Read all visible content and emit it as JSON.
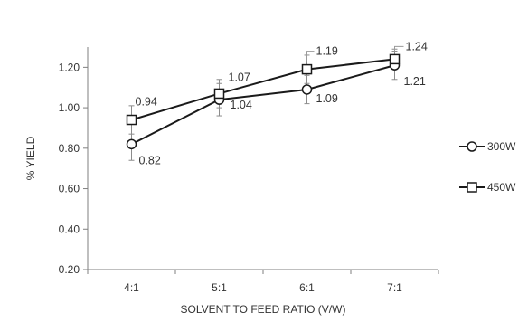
{
  "chart_data": {
    "type": "line",
    "title": "",
    "xlabel": "SOLVENT TO FEED RATIO (V/W)",
    "ylabel": "% YIELD",
    "categories": [
      "4:1",
      "5:1",
      "6:1",
      "7:1"
    ],
    "ylim": [
      0.2,
      1.3
    ],
    "yticks": [
      0.2,
      0.4,
      0.6,
      0.8,
      1.0,
      1.2
    ],
    "ytick_labels": [
      "0.20",
      "0.40",
      "0.60",
      "0.80",
      "1.00",
      "1.20"
    ],
    "grid": false,
    "legend_position": "right",
    "series": [
      {
        "name": "300W",
        "marker": "circle",
        "values": [
          0.82,
          1.04,
          1.09,
          1.21
        ],
        "labels": [
          "0.82",
          "1.04",
          "1.09",
          "1.21"
        ],
        "error": [
          0.08,
          0.08,
          0.07,
          0.07
        ]
      },
      {
        "name": "450W",
        "marker": "square",
        "values": [
          0.94,
          1.07,
          1.19,
          1.24
        ],
        "labels": [
          "0.94",
          "1.07",
          "1.19",
          "1.24"
        ],
        "error": [
          0.07,
          0.07,
          0.07,
          0.05
        ]
      }
    ]
  }
}
